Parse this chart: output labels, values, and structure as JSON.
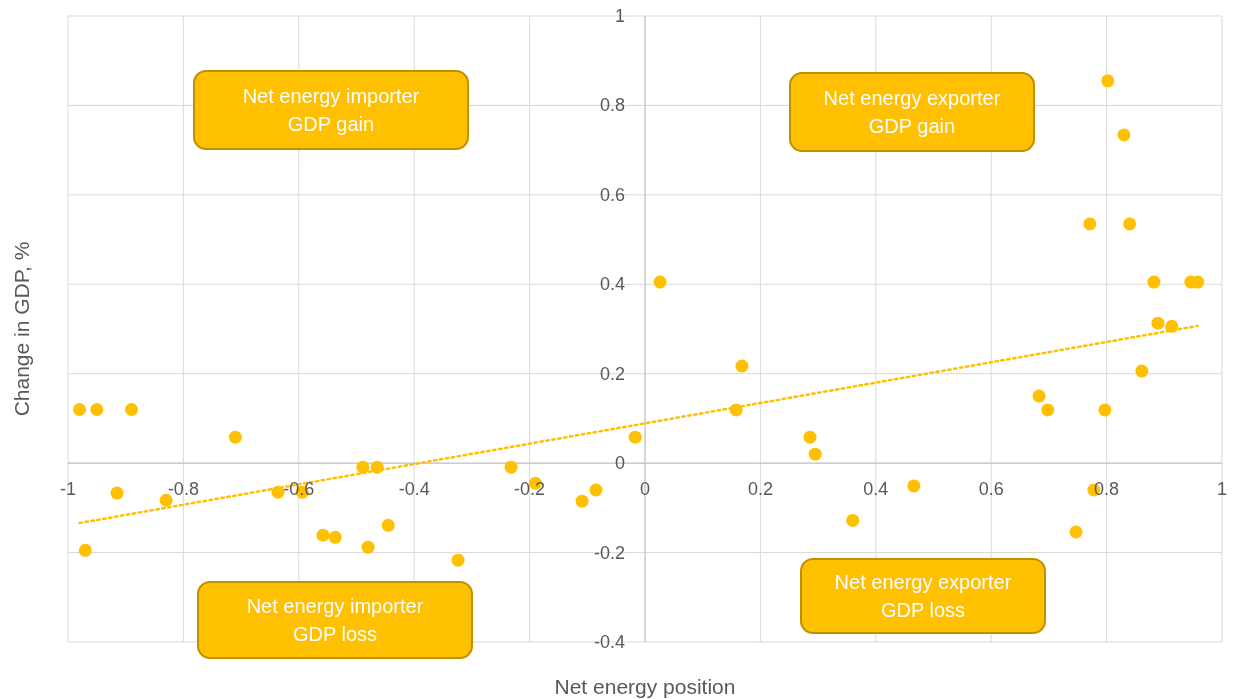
{
  "chart_data": {
    "type": "scatter",
    "xlabel": "Net energy position",
    "ylabel": "Change in GDP, %",
    "xlim": [
      -1,
      1
    ],
    "ylim": [
      -0.4,
      1
    ],
    "xticks": [
      -1,
      -0.8,
      -0.6,
      -0.4,
      -0.2,
      0,
      0.2,
      0.4,
      0.6,
      0.8,
      1
    ],
    "yticks": [
      -0.4,
      -0.2,
      0,
      0.2,
      0.4,
      0.6,
      0.8,
      1
    ],
    "grid": true,
    "annotations": [
      "Net energy importer\nGDP gain",
      "Net energy exporter\nGDP gain",
      "Net energy exporter\nGDP loss",
      "Net energy importer\nGDP loss"
    ],
    "series": [
      {
        "marker": "circle",
        "color": "#ffc000",
        "x": [
          -0.98,
          -0.95,
          -0.89,
          -0.97,
          -0.915,
          -0.83,
          -0.71,
          -0.636,
          -0.594,
          -0.558,
          -0.537,
          -0.489,
          -0.464,
          -0.48,
          -0.445,
          -0.324,
          -0.232,
          -0.19,
          -0.109,
          -0.085,
          -0.017,
          0.026,
          0.158,
          0.168,
          0.286,
          0.295,
          0.36,
          0.466,
          0.683,
          0.698,
          0.747,
          0.771,
          0.778,
          0.797,
          0.802,
          0.83,
          0.84,
          0.861,
          0.882,
          0.889,
          0.913,
          0.946,
          0.958
        ],
        "values": [
          0.12,
          0.12,
          0.12,
          -0.195,
          -0.067,
          -0.083,
          0.058,
          -0.065,
          -0.065,
          -0.161,
          -0.166,
          -0.009,
          -0.009,
          -0.188,
          -0.139,
          -0.217,
          -0.009,
          -0.045,
          -0.085,
          -0.06,
          0.058,
          0.405,
          0.119,
          0.217,
          0.058,
          0.02,
          -0.128,
          -0.051,
          0.15,
          0.119,
          -0.154,
          0.535,
          -0.06,
          0.119,
          0.855,
          0.734,
          0.535,
          0.206,
          0.405,
          0.313,
          0.306,
          0.405,
          0.405
        ]
      },
      {
        "type": "line",
        "color": "#ffc000",
        "line_style": "dotted",
        "marker": "none",
        "x": [
          -0.98,
          0.958
        ],
        "values": [
          -0.134,
          0.307
        ]
      }
    ]
  }
}
